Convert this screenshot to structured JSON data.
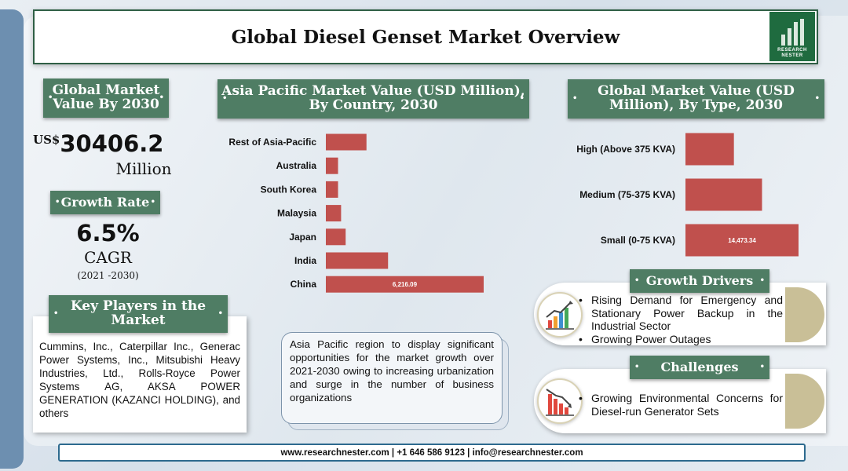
{
  "title": "Global Diesel Genset Market Overview",
  "logo": {
    "line1": "RESEARCH",
    "line2": "NESTER",
    "icon": "bar-chart-logo-icon"
  },
  "market_value": {
    "heading": "Global Market Value By 2030",
    "currency": "US$",
    "value": "30406.2",
    "unit": "Million"
  },
  "growth": {
    "heading": "Growth Rate",
    "value": "6.5%",
    "unit": "CAGR",
    "period": "(2021 -2030)"
  },
  "key_players": {
    "heading": "Key Players in the Market",
    "text": "Cummins, Inc., Caterpillar Inc., Generac Power Systems, Inc., Mitsubishi Heavy Industries, Ltd., Rolls-Royce Power Systems AG, AKSA POWER GENERATION (KAZANCI HOLDING), and others"
  },
  "asia_note": "Asia Pacific region to display significant opportunities for the market growth over 2021-2030 owing to increasing urbanization and surge in the number of business organizations",
  "growth_drivers": {
    "heading": "Growth Drivers",
    "icon": "rising-chart-icon",
    "items": [
      "Rising Demand for Emergency and Stationary Power Backup in the Industrial Sector",
      "Growing Power Outages"
    ]
  },
  "challenges": {
    "heading": "Challenges",
    "icon": "falling-chart-icon",
    "items": [
      "Growing Environmental Concerns for Diesel-run Generator Sets"
    ]
  },
  "footer": "www.researchnester.com | +1 646 586 9123 | info@researchnester.com",
  "colors": {
    "bar": "#c0504d",
    "banner": "#4f7d64",
    "accent": "#c9bf97"
  },
  "chart_data": [
    {
      "type": "bar",
      "orientation": "horizontal",
      "title": "Asia Pacific Market Value (USD Million), By Country, 2030",
      "categories": [
        "Rest of Asia-Pacific",
        "Australia",
        "South Korea",
        "Malaysia",
        "Japan",
        "India",
        "China"
      ],
      "values": [
        1600,
        480,
        480,
        600,
        780,
        2450,
        6216.09
      ],
      "data_labels": [
        "",
        "",
        "",
        "",
        "",
        "",
        "6,216.09"
      ],
      "xlim": [
        0,
        6216.09
      ],
      "grid": false,
      "legend": "none"
    },
    {
      "type": "bar",
      "orientation": "horizontal",
      "title": "Global Market Value (USD Million), By Type, 2030",
      "categories": [
        "High (Above 375 KVA)",
        "Medium (75-375 KVA)",
        "Small (0-75 KVA)"
      ],
      "values": [
        6200,
        9800,
        14473.34
      ],
      "data_labels": [
        "",
        "",
        "14,473.34"
      ],
      "xlim": [
        0,
        14473.34
      ],
      "grid": false,
      "legend": "none"
    }
  ]
}
